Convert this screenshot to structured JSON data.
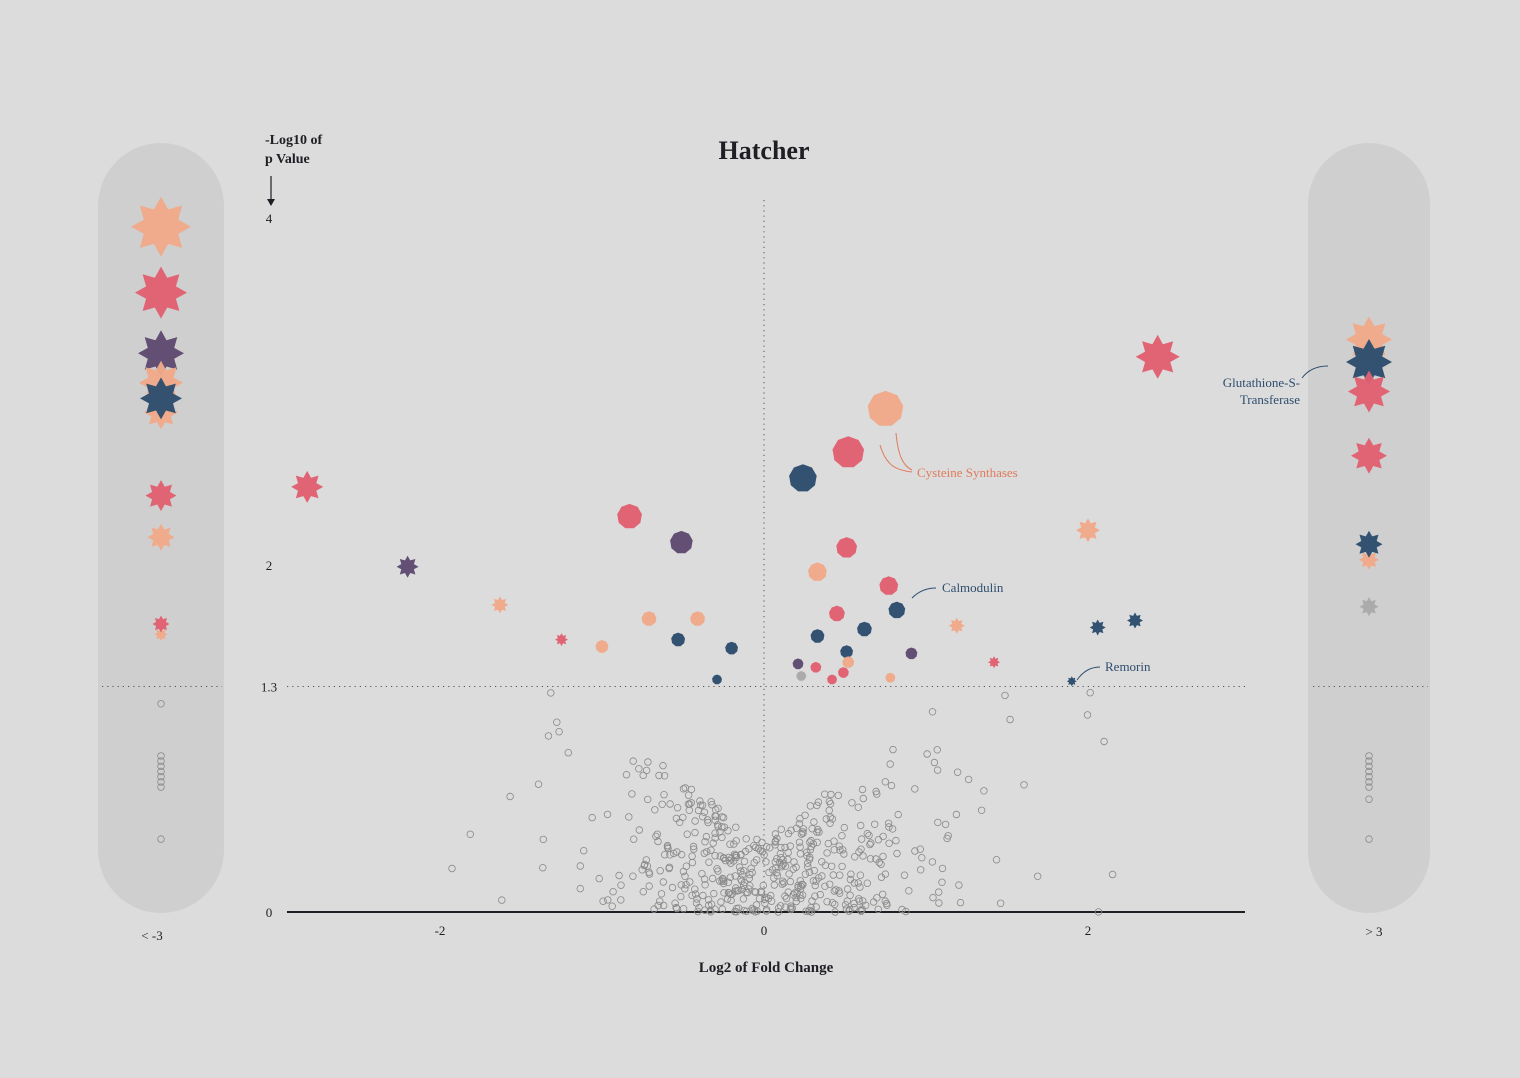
{
  "chart_data": {
    "type": "scatter",
    "title": "Hatcher",
    "xlabel": "Log2 of Fold Change",
    "ylabel": "-Log10 of p Value",
    "xlim": [
      -3,
      3
    ],
    "ylim": [
      0,
      4.1
    ],
    "x_ticks": [
      -2,
      0,
      2
    ],
    "y_ticks": [
      0,
      1.3,
      2,
      4
    ],
    "significance_threshold": 1.3,
    "left_overflow_label": "< -3",
    "right_overflow_label": "> 3",
    "grid": false,
    "colors": {
      "peach": "#f0a988",
      "pink": "#e06070",
      "purple": "#5e4a70",
      "navy": "#2d4d6e",
      "grey": "#a9a9a9"
    },
    "annotations": [
      {
        "text": "Cysteine Synthases",
        "color": "#e07b5a",
        "x": 0.95,
        "y": 2.4
      },
      {
        "text": "Calmodulin",
        "color": "#2d4d6e",
        "x": 1.1,
        "y": 1.85
      },
      {
        "text": "Remorin",
        "color": "#2d4d6e",
        "x": 2.1,
        "y": 1.4
      },
      {
        "text": "Glutathione-S-Transferase",
        "color": "#2d4d6e",
        "x": 3.1,
        "y": 3.05
      }
    ],
    "significant_points": [
      {
        "x": 2.43,
        "y": 3.2,
        "size": 40,
        "shape": "star",
        "color": "pink"
      },
      {
        "x": 0.75,
        "y": 2.9,
        "size": 32,
        "shape": "poly",
        "color": "peach"
      },
      {
        "x": 0.52,
        "y": 2.65,
        "size": 28,
        "shape": "poly",
        "color": "pink"
      },
      {
        "x": 0.24,
        "y": 2.5,
        "size": 24,
        "shape": "poly",
        "color": "navy"
      },
      {
        "x": -2.82,
        "y": 2.45,
        "size": 28,
        "shape": "star",
        "color": "pink"
      },
      {
        "x": -0.83,
        "y": 2.28,
        "size": 21,
        "shape": "poly",
        "color": "pink"
      },
      {
        "x": -0.51,
        "y": 2.13,
        "size": 19,
        "shape": "poly",
        "color": "purple"
      },
      {
        "x": 2.0,
        "y": 2.2,
        "size": 20,
        "shape": "star",
        "color": "peach"
      },
      {
        "x": 0.51,
        "y": 2.1,
        "size": 17,
        "shape": "poly",
        "color": "pink"
      },
      {
        "x": 0.33,
        "y": 1.96,
        "size": 15,
        "shape": "poly",
        "color": "peach"
      },
      {
        "x": -2.2,
        "y": 1.99,
        "size": 18,
        "shape": "star",
        "color": "purple"
      },
      {
        "x": 0.77,
        "y": 1.88,
        "size": 15,
        "shape": "poly",
        "color": "pink"
      },
      {
        "x": 0.82,
        "y": 1.74,
        "size": 13,
        "shape": "poly",
        "color": "navy"
      },
      {
        "x": -1.63,
        "y": 1.77,
        "size": 13,
        "shape": "star",
        "color": "peach"
      },
      {
        "x": 0.45,
        "y": 1.72,
        "size": 12,
        "shape": "poly",
        "color": "pink"
      },
      {
        "x": -0.71,
        "y": 1.69,
        "size": 11,
        "shape": "poly",
        "color": "peach"
      },
      {
        "x": -0.41,
        "y": 1.69,
        "size": 11,
        "shape": "poly",
        "color": "peach"
      },
      {
        "x": 1.19,
        "y": 1.65,
        "size": 12,
        "shape": "star",
        "color": "peach"
      },
      {
        "x": 2.06,
        "y": 1.64,
        "size": 12,
        "shape": "star",
        "color": "navy"
      },
      {
        "x": 2.29,
        "y": 1.68,
        "size": 12,
        "shape": "star",
        "color": "navy"
      },
      {
        "x": 0.62,
        "y": 1.63,
        "size": 11,
        "shape": "poly",
        "color": "navy"
      },
      {
        "x": 0.33,
        "y": 1.59,
        "size": 10,
        "shape": "poly",
        "color": "navy"
      },
      {
        "x": -0.53,
        "y": 1.57,
        "size": 10,
        "shape": "poly",
        "color": "navy"
      },
      {
        "x": -1.25,
        "y": 1.57,
        "size": 9,
        "shape": "star",
        "color": "pink"
      },
      {
        "x": -1.0,
        "y": 1.53,
        "size": 9,
        "shape": "poly",
        "color": "peach"
      },
      {
        "x": -0.2,
        "y": 1.52,
        "size": 9,
        "shape": "poly",
        "color": "navy"
      },
      {
        "x": 0.51,
        "y": 1.5,
        "size": 9,
        "shape": "poly",
        "color": "navy"
      },
      {
        "x": 0.91,
        "y": 1.49,
        "size": 8,
        "shape": "poly",
        "color": "purple"
      },
      {
        "x": 0.52,
        "y": 1.44,
        "size": 8,
        "shape": "poly",
        "color": "peach"
      },
      {
        "x": 1.42,
        "y": 1.44,
        "size": 8,
        "shape": "star",
        "color": "pink"
      },
      {
        "x": 0.21,
        "y": 1.43,
        "size": 7,
        "shape": "poly",
        "color": "purple"
      },
      {
        "x": 0.32,
        "y": 1.41,
        "size": 7,
        "shape": "poly",
        "color": "pink"
      },
      {
        "x": 0.49,
        "y": 1.38,
        "size": 7,
        "shape": "poly",
        "color": "pink"
      },
      {
        "x": 0.23,
        "y": 1.36,
        "size": 6,
        "shape": "poly",
        "color": "grey"
      },
      {
        "x": 0.42,
        "y": 1.34,
        "size": 6,
        "shape": "poly",
        "color": "pink"
      },
      {
        "x": -0.29,
        "y": 1.34,
        "size": 6,
        "shape": "poly",
        "color": "navy"
      },
      {
        "x": 0.78,
        "y": 1.35,
        "size": 6,
        "shape": "poly",
        "color": "peach"
      },
      {
        "x": 1.9,
        "y": 1.33,
        "size": 6,
        "shape": "star",
        "color": "navy"
      }
    ],
    "left_overflow_points": [
      {
        "y": 3.95,
        "size": 56,
        "shape": "star",
        "color": "peach"
      },
      {
        "y": 3.57,
        "size": 48,
        "shape": "star",
        "color": "pink"
      },
      {
        "y": 3.22,
        "size": 42,
        "shape": "star",
        "color": "purple"
      },
      {
        "y": 2.88,
        "size": 30,
        "shape": "star",
        "color": "peach"
      },
      {
        "y": 3.05,
        "size": 40,
        "shape": "star",
        "color": "peach"
      },
      {
        "y": 2.96,
        "size": 38,
        "shape": "star",
        "color": "navy"
      },
      {
        "y": 2.4,
        "size": 27,
        "shape": "star",
        "color": "pink"
      },
      {
        "y": 2.16,
        "size": 23,
        "shape": "star",
        "color": "peach"
      },
      {
        "y": 1.6,
        "size": 9,
        "shape": "star",
        "color": "peach"
      },
      {
        "y": 1.66,
        "size": 13,
        "shape": "star",
        "color": "pink"
      }
    ],
    "right_overflow_points": [
      {
        "y": 3.3,
        "size": 42,
        "shape": "star",
        "color": "peach"
      },
      {
        "y": 3.17,
        "size": 42,
        "shape": "star",
        "color": "navy"
      },
      {
        "y": 3.0,
        "size": 38,
        "shape": "star",
        "color": "pink"
      },
      {
        "y": 2.63,
        "size": 32,
        "shape": "star",
        "color": "pink"
      },
      {
        "y": 2.03,
        "size": 16,
        "shape": "star",
        "color": "peach"
      },
      {
        "y": 2.12,
        "size": 23,
        "shape": "star",
        "color": "navy"
      },
      {
        "y": 1.76,
        "size": 15,
        "shape": "star",
        "color": "grey"
      }
    ],
    "left_overflow_nonsignificant_y": [
      1.2,
      0.9,
      0.87,
      0.84,
      0.81,
      0.78,
      0.75,
      0.72,
      0.42
    ],
    "right_overflow_nonsignificant_y": [
      0.9,
      0.87,
      0.84,
      0.81,
      0.78,
      0.75,
      0.72,
      0.65,
      0.42
    ],
    "nonsignificant_points_estimated_count": 520
  }
}
